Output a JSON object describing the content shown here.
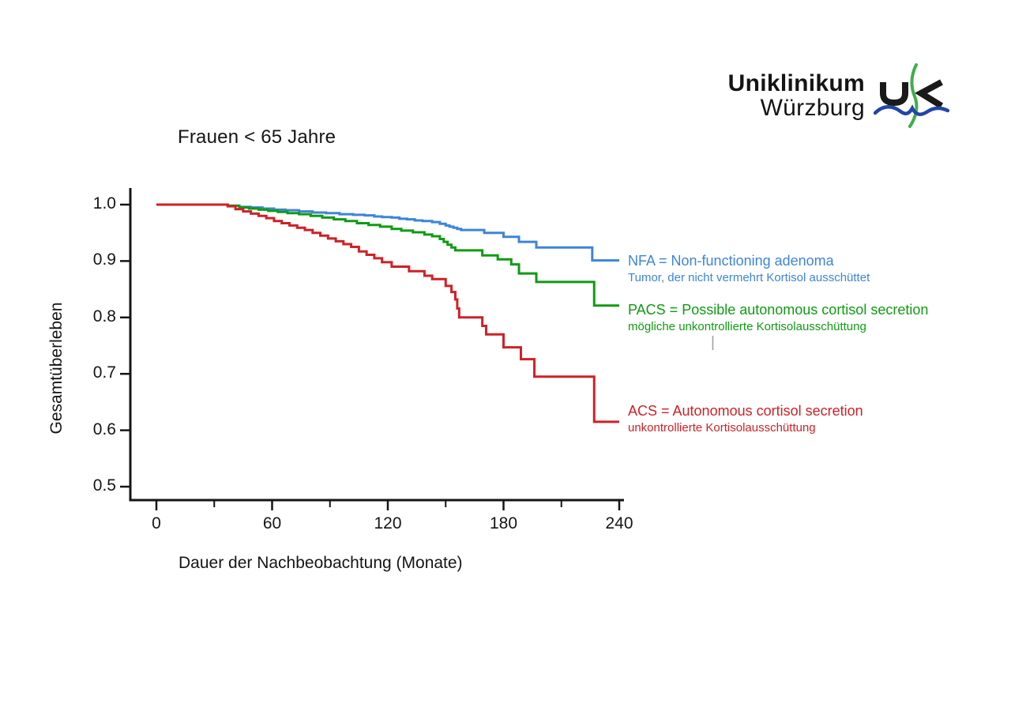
{
  "logo": {
    "line1": "Uniklinikum",
    "line2": "Würzburg",
    "mark_colors": {
      "black": "#1a1a1a",
      "green": "#3fae49",
      "blue": "#2146a5"
    }
  },
  "chart_data": {
    "type": "line",
    "variant": "kaplan_meier_step",
    "title": "Frauen < 65 Jahre",
    "xlabel": "Dauer der Nachbeobachtung (Monate)",
    "ylabel": "Gesamtüberleben",
    "xlim": [
      0,
      240
    ],
    "ylim": [
      0.5,
      1.0
    ],
    "grid": false,
    "axis_color": "#151515",
    "x_ticks": {
      "major": [
        0,
        60,
        120,
        180,
        240
      ],
      "labels": [
        "0",
        "60",
        "120",
        "180",
        "240"
      ],
      "minor": [
        30,
        90,
        150,
        210
      ]
    },
    "y_ticks": {
      "values": [
        1.0,
        0.9,
        0.8,
        0.7,
        0.6,
        0.5
      ],
      "labels": [
        "1.0",
        "0.9",
        "0.8",
        "0.7",
        "0.6",
        "0.5"
      ]
    },
    "legend_position": "right-of-curve-ends",
    "series": [
      {
        "name": "NFA",
        "color": "#3d85d8",
        "label": "NFA = Non-functioning adenoma",
        "sublabel": "Tumor, der nicht vermehrt Kortisol ausschüttet",
        "points": [
          [
            0,
            1.0
          ],
          [
            37,
            0.998
          ],
          [
            43,
            0.996
          ],
          [
            49,
            0.995
          ],
          [
            55,
            0.993
          ],
          [
            61,
            0.991
          ],
          [
            67,
            0.99
          ],
          [
            74,
            0.988
          ],
          [
            81,
            0.986
          ],
          [
            88,
            0.985
          ],
          [
            95,
            0.983
          ],
          [
            102,
            0.982
          ],
          [
            108,
            0.981
          ],
          [
            113,
            0.979
          ],
          [
            117,
            0.978
          ],
          [
            122,
            0.977
          ],
          [
            126,
            0.975
          ],
          [
            130,
            0.974
          ],
          [
            134,
            0.972
          ],
          [
            138,
            0.971
          ],
          [
            143,
            0.969
          ],
          [
            147,
            0.966
          ],
          [
            150,
            0.963
          ],
          [
            152,
            0.961
          ],
          [
            154,
            0.959
          ],
          [
            156,
            0.957
          ],
          [
            158,
            0.955
          ],
          [
            170,
            0.95
          ],
          [
            180,
            0.943
          ],
          [
            188,
            0.934
          ],
          [
            197,
            0.924
          ],
          [
            226,
            0.901
          ],
          [
            240,
            0.901
          ]
        ]
      },
      {
        "name": "PACS",
        "color": "#0f9b12",
        "label": "PACS = Possible autonomous cortisol secretion",
        "sublabel": "mögliche unkontrollierte Kortisolausschüttung",
        "points": [
          [
            0,
            1.0
          ],
          [
            37,
            0.998
          ],
          [
            43,
            0.995
          ],
          [
            48,
            0.993
          ],
          [
            53,
            0.991
          ],
          [
            58,
            0.989
          ],
          [
            63,
            0.987
          ],
          [
            68,
            0.985
          ],
          [
            74,
            0.983
          ],
          [
            80,
            0.98
          ],
          [
            86,
            0.977
          ],
          [
            92,
            0.974
          ],
          [
            98,
            0.971
          ],
          [
            104,
            0.967
          ],
          [
            110,
            0.964
          ],
          [
            116,
            0.961
          ],
          [
            122,
            0.957
          ],
          [
            127,
            0.954
          ],
          [
            133,
            0.951
          ],
          [
            139,
            0.947
          ],
          [
            143,
            0.944
          ],
          [
            147,
            0.939
          ],
          [
            149,
            0.934
          ],
          [
            151,
            0.929
          ],
          [
            153,
            0.924
          ],
          [
            155,
            0.919
          ],
          [
            169,
            0.91
          ],
          [
            177,
            0.903
          ],
          [
            184,
            0.894
          ],
          [
            188,
            0.878
          ],
          [
            197,
            0.863
          ],
          [
            227,
            0.821
          ],
          [
            240,
            0.821
          ]
        ]
      },
      {
        "name": "ACS",
        "color": "#ce2127",
        "label": "ACS = Autonomous cortisol secretion",
        "sublabel": "unkontrollierte Kortisolausschüttung",
        "points": [
          [
            0,
            1.0
          ],
          [
            37,
            0.997
          ],
          [
            41,
            0.992
          ],
          [
            45,
            0.988
          ],
          [
            49,
            0.984
          ],
          [
            53,
            0.98
          ],
          [
            57,
            0.976
          ],
          [
            61,
            0.971
          ],
          [
            65,
            0.967
          ],
          [
            69,
            0.963
          ],
          [
            73,
            0.959
          ],
          [
            77,
            0.955
          ],
          [
            81,
            0.95
          ],
          [
            85,
            0.945
          ],
          [
            89,
            0.94
          ],
          [
            93,
            0.935
          ],
          [
            97,
            0.93
          ],
          [
            101,
            0.925
          ],
          [
            105,
            0.917
          ],
          [
            109,
            0.911
          ],
          [
            113,
            0.905
          ],
          [
            117,
            0.898
          ],
          [
            122,
            0.89
          ],
          [
            131,
            0.882
          ],
          [
            139,
            0.874
          ],
          [
            143,
            0.868
          ],
          [
            150,
            0.856
          ],
          [
            153,
            0.845
          ],
          [
            155,
            0.832
          ],
          [
            156,
            0.816
          ],
          [
            157,
            0.8
          ],
          [
            169,
            0.785
          ],
          [
            171,
            0.77
          ],
          [
            180,
            0.747
          ],
          [
            189,
            0.726
          ],
          [
            196,
            0.695
          ],
          [
            227,
            0.615
          ],
          [
            240,
            0.615
          ]
        ]
      }
    ],
    "annotation": {
      "censor_mark": "|",
      "color": "#9e9e9e"
    }
  }
}
